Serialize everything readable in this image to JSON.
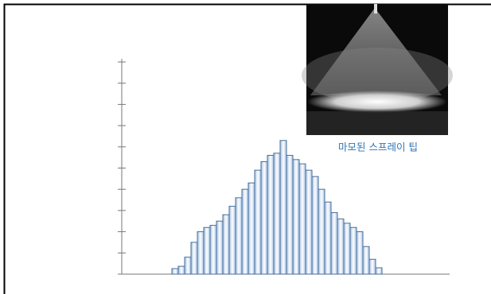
{
  "chart_data": {
    "type": "bar",
    "categories": [
      null,
      null,
      null,
      null,
      null,
      null,
      null,
      null,
      null,
      null,
      null,
      null,
      null,
      null,
      null,
      null,
      null,
      null,
      null,
      null,
      null,
      null,
      null,
      null,
      null,
      null,
      null,
      null,
      null,
      null,
      null,
      null,
      null
    ],
    "values": [
      0.26,
      0.37,
      0.8,
      1.5,
      2.0,
      2.2,
      2.3,
      2.5,
      2.8,
      3.2,
      3.6,
      4.0,
      4.3,
      4.9,
      5.3,
      5.6,
      5.7,
      6.3,
      5.6,
      5.4,
      5.2,
      4.9,
      4.6,
      4.0,
      3.4,
      2.9,
      2.6,
      2.4,
      2.2,
      2.0,
      1.3,
      0.7,
      0.3
    ],
    "color": "#4a6f9a",
    "ylim": [
      0,
      10
    ],
    "yticks": [
      0,
      1,
      2,
      3,
      4,
      5,
      6,
      7,
      8,
      9,
      10
    ],
    "image_caption": "마모된 스프레이 팁"
  }
}
